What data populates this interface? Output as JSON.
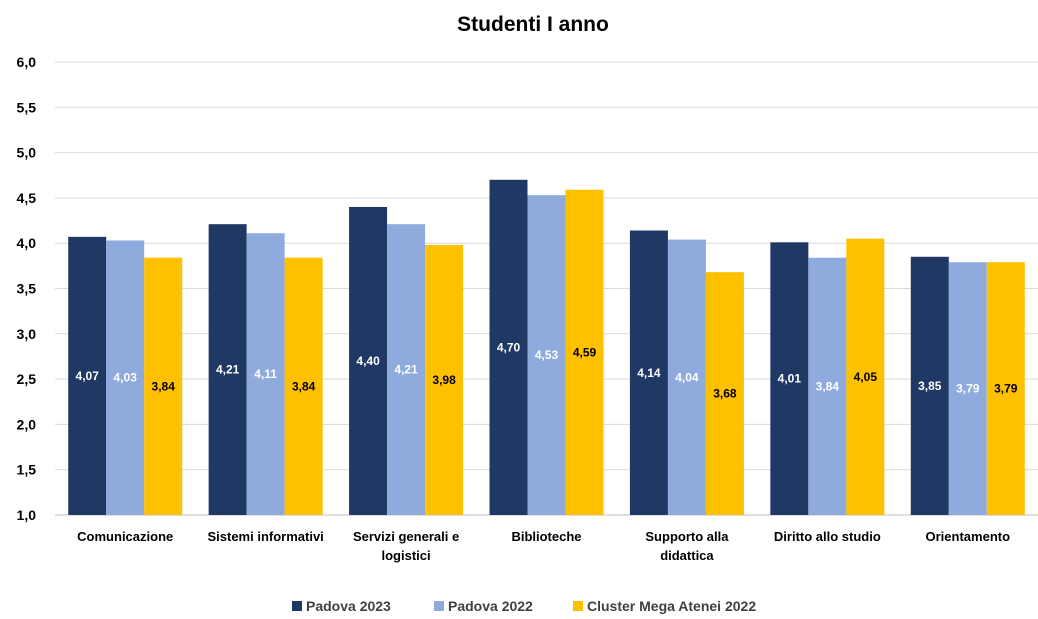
{
  "chart_data": {
    "type": "bar",
    "title": "Studenti I anno",
    "categories": [
      [
        "Comunicazione"
      ],
      [
        "Sistemi informativi"
      ],
      [
        "Servizi generali e",
        "logistici"
      ],
      [
        "Biblioteche"
      ],
      [
        "Supporto alla",
        "didattica"
      ],
      [
        "Diritto allo studio"
      ],
      [
        "Orientamento"
      ]
    ],
    "series": [
      {
        "name": "Padova 2023",
        "color": "#203864",
        "label_color": "#ffffff",
        "values": [
          4.07,
          4.21,
          4.4,
          4.7,
          4.14,
          4.01,
          3.85
        ],
        "labels": [
          "4,07",
          "4,21",
          "4,40",
          "4,70",
          "4,14",
          "4,01",
          "3,85"
        ]
      },
      {
        "name": "Padova 2022",
        "color": "#8faadc",
        "label_color": "#ffffff",
        "values": [
          4.03,
          4.11,
          4.21,
          4.53,
          4.04,
          3.84,
          3.79
        ],
        "labels": [
          "4,03",
          "4,11",
          "4,21",
          "4,53",
          "4,04",
          "3,84",
          "3,79"
        ]
      },
      {
        "name": "Cluster Mega Atenei 2022",
        "color": "#ffc000",
        "label_color": "#000000",
        "values": [
          3.84,
          3.84,
          3.98,
          4.59,
          3.68,
          4.05,
          3.79
        ],
        "labels": [
          "3,84",
          "3,84",
          "3,98",
          "4,59",
          "3,68",
          "4,05",
          "3,79"
        ]
      }
    ],
    "ylim": [
      1.0,
      6.0
    ],
    "yticks": [
      1.0,
      1.5,
      2.0,
      2.5,
      3.0,
      3.5,
      4.0,
      4.5,
      5.0,
      5.5,
      6.0
    ],
    "ytick_labels": [
      "1,0",
      "1,5",
      "2,0",
      "2,5",
      "3,0",
      "3,5",
      "4,0",
      "4,5",
      "5,0",
      "5,5",
      "6,0"
    ],
    "grid": true,
    "legend_position": "bottom"
  }
}
